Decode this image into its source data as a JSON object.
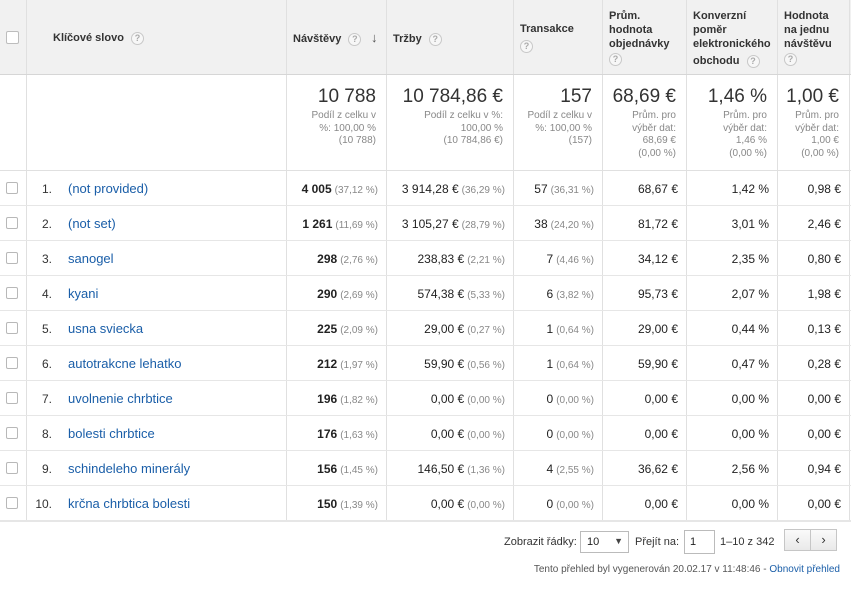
{
  "columns": {
    "keyword": "Klíčové slovo",
    "visits": "Návštěvy",
    "revenue": "Tržby",
    "transactions": "Transakce",
    "avg_order_value": [
      "Prům.",
      "hodnota",
      "objednávky"
    ],
    "conversion_rate": [
      "Konverzní",
      "poměr",
      "elektronického",
      "obchodu"
    ],
    "value_per_visit": [
      "Hodnota",
      "na jednu",
      "návštěvu"
    ]
  },
  "totals": {
    "visits": {
      "value": "10 788",
      "sub": [
        "Podíl z celku v",
        "%: 100,00 %",
        "(10 788)"
      ]
    },
    "revenue": {
      "value": "10 784,86 €",
      "sub": [
        "Podíl z celku v %:",
        "100,00 %",
        "(10 784,86 €)"
      ]
    },
    "transactions": {
      "value": "157",
      "sub": [
        "Podíl z celku v",
        "%: 100,00 %",
        "(157)"
      ]
    },
    "avg_order_value": {
      "value": "68,69 €",
      "sub": [
        "Prům. pro",
        "výběr dat:",
        "68,69 €",
        "(0,00 %)"
      ]
    },
    "conversion_rate": {
      "value": "1,46 %",
      "sub": [
        "Prům. pro",
        "výběr dat:",
        "1,46 %",
        "(0,00 %)"
      ]
    },
    "value_per_visit": {
      "value": "1,00 €",
      "sub": [
        "Prům. pro",
        "výběr dat:",
        "1,00 €",
        "(0,00 %)"
      ]
    }
  },
  "rows": [
    {
      "num": "1.",
      "keyword": "(not provided)",
      "visits": "4 005",
      "visits_pct": "(37,12 %)",
      "revenue": "3 914,28 €",
      "revenue_pct": "(36,29 %)",
      "tx": "57",
      "tx_pct": "(36,31 %)",
      "aov": "68,67 €",
      "cr": "1,42 %",
      "vpv": "0,98 €"
    },
    {
      "num": "2.",
      "keyword": "(not set)",
      "visits": "1 261",
      "visits_pct": "(11,69 %)",
      "revenue": "3 105,27 €",
      "revenue_pct": "(28,79 %)",
      "tx": "38",
      "tx_pct": "(24,20 %)",
      "aov": "81,72 €",
      "cr": "3,01 %",
      "vpv": "2,46 €"
    },
    {
      "num": "3.",
      "keyword": "sanogel",
      "visits": "298",
      "visits_pct": "(2,76 %)",
      "revenue": "238,83 €",
      "revenue_pct": "(2,21 %)",
      "tx": "7",
      "tx_pct": "(4,46 %)",
      "aov": "34,12 €",
      "cr": "2,35 %",
      "vpv": "0,80 €"
    },
    {
      "num": "4.",
      "keyword": "kyani",
      "visits": "290",
      "visits_pct": "(2,69 %)",
      "revenue": "574,38 €",
      "revenue_pct": "(5,33 %)",
      "tx": "6",
      "tx_pct": "(3,82 %)",
      "aov": "95,73 €",
      "cr": "2,07 %",
      "vpv": "1,98 €"
    },
    {
      "num": "5.",
      "keyword": "usna sviecka",
      "visits": "225",
      "visits_pct": "(2,09 %)",
      "revenue": "29,00 €",
      "revenue_pct": "(0,27 %)",
      "tx": "1",
      "tx_pct": "(0,64 %)",
      "aov": "29,00 €",
      "cr": "0,44 %",
      "vpv": "0,13 €"
    },
    {
      "num": "6.",
      "keyword": "autotrakcne lehatko",
      "visits": "212",
      "visits_pct": "(1,97 %)",
      "revenue": "59,90 €",
      "revenue_pct": "(0,56 %)",
      "tx": "1",
      "tx_pct": "(0,64 %)",
      "aov": "59,90 €",
      "cr": "0,47 %",
      "vpv": "0,28 €"
    },
    {
      "num": "7.",
      "keyword": "uvolnenie chrbtice",
      "visits": "196",
      "visits_pct": "(1,82 %)",
      "revenue": "0,00 €",
      "revenue_pct": "(0,00 %)",
      "tx": "0",
      "tx_pct": "(0,00 %)",
      "aov": "0,00 €",
      "cr": "0,00 %",
      "vpv": "0,00 €"
    },
    {
      "num": "8.",
      "keyword": "bolesti chrbtice",
      "visits": "176",
      "visits_pct": "(1,63 %)",
      "revenue": "0,00 €",
      "revenue_pct": "(0,00 %)",
      "tx": "0",
      "tx_pct": "(0,00 %)",
      "aov": "0,00 €",
      "cr": "0,00 %",
      "vpv": "0,00 €"
    },
    {
      "num": "9.",
      "keyword": "schindeleho minerály",
      "visits": "156",
      "visits_pct": "(1,45 %)",
      "revenue": "146,50 €",
      "revenue_pct": "(1,36 %)",
      "tx": "4",
      "tx_pct": "(2,55 %)",
      "aov": "36,62 €",
      "cr": "2,56 %",
      "vpv": "0,94 €"
    },
    {
      "num": "10.",
      "keyword": "krčna chrbtica bolesti",
      "visits": "150",
      "visits_pct": "(1,39 %)",
      "revenue": "0,00 €",
      "revenue_pct": "(0,00 %)",
      "tx": "0",
      "tx_pct": "(0,00 %)",
      "aov": "0,00 €",
      "cr": "0,00 %",
      "vpv": "0,00 €"
    }
  ],
  "footer": {
    "show_rows_label": "Zobrazit řádky:",
    "show_rows_value": "10",
    "goto_label": "Přejít na:",
    "goto_value": "1",
    "range": "1–10 z 342",
    "prev": "‹",
    "next": "›",
    "generated": "Tento přehled byl vygenerován 20.02.17 v 11:48:46 - ",
    "refresh_link": "Obnovit přehled"
  },
  "colors": {
    "link": "#1a5ea8",
    "header_bg": "#f1f1f1",
    "muted": "#888888"
  }
}
